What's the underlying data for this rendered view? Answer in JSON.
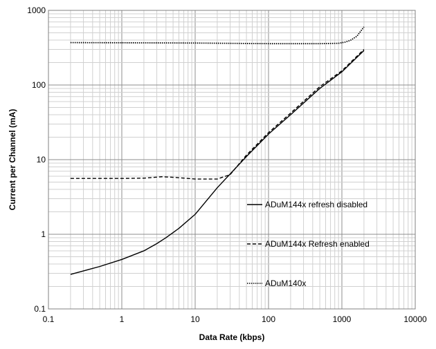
{
  "chart_data": {
    "type": "line",
    "title": "",
    "xlabel": "Data Rate (kbps)",
    "ylabel": "Current per Channel (mA)",
    "xscale": "log",
    "yscale": "log",
    "xlim": [
      0.1,
      10000
    ],
    "ylim": [
      0.1,
      1000
    ],
    "grid": true,
    "legend_position": "center-right",
    "x_tick_labels": [
      "0.1",
      "1",
      "10",
      "100",
      "1000",
      "10000"
    ],
    "y_tick_labels": [
      "0.1",
      "1",
      "10",
      "100",
      "1000"
    ],
    "series": [
      {
        "name": "ADuM144x refresh disabled",
        "line_style": "solid",
        "color": "#000000",
        "points": [
          [
            0.2,
            0.29
          ],
          [
            0.5,
            0.37
          ],
          [
            1,
            0.46
          ],
          [
            2,
            0.6
          ],
          [
            3,
            0.75
          ],
          [
            4,
            0.9
          ],
          [
            6,
            1.2
          ],
          [
            10,
            1.85
          ],
          [
            20,
            4.2
          ],
          [
            50,
            11
          ],
          [
            100,
            22
          ],
          [
            200,
            40
          ],
          [
            500,
            90
          ],
          [
            1000,
            150
          ],
          [
            2000,
            290
          ]
        ]
      },
      {
        "name": "ADuM144x Refresh enabled",
        "line_style": "dashed",
        "color": "#000000",
        "points": [
          [
            0.2,
            5.6
          ],
          [
            1,
            5.6
          ],
          [
            2,
            5.65
          ],
          [
            3.5,
            5.9
          ],
          [
            5,
            5.8
          ],
          [
            10,
            5.5
          ],
          [
            20,
            5.5
          ],
          [
            30,
            6.3
          ],
          [
            50,
            11.5
          ],
          [
            100,
            23
          ],
          [
            200,
            42
          ],
          [
            500,
            95
          ],
          [
            1000,
            155
          ],
          [
            2000,
            300
          ]
        ]
      },
      {
        "name": "ADuM140x",
        "line_style": "dotted",
        "color": "#000000",
        "points": [
          [
            0.2,
            370
          ],
          [
            1,
            368
          ],
          [
            10,
            365
          ],
          [
            100,
            358
          ],
          [
            500,
            358
          ],
          [
            900,
            362
          ],
          [
            1100,
            375
          ],
          [
            1300,
            395
          ],
          [
            1600,
            450
          ],
          [
            2000,
            600
          ]
        ]
      }
    ]
  }
}
